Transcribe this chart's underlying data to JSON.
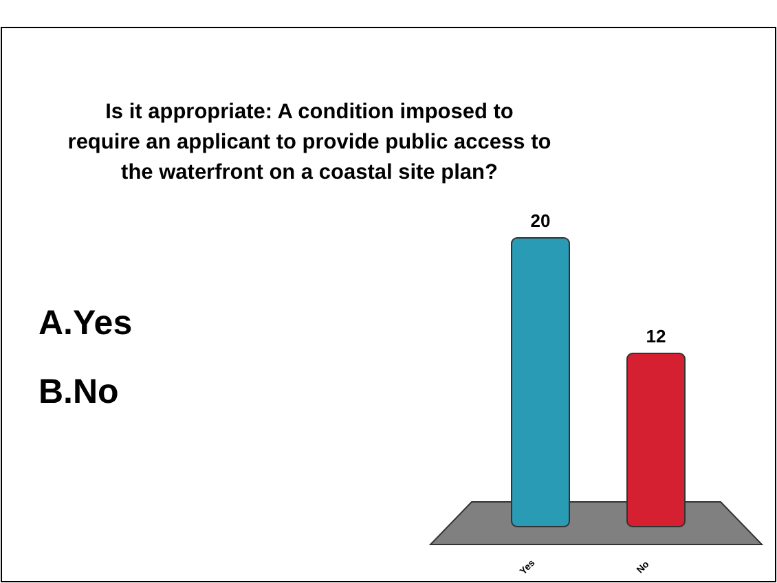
{
  "chart_data": {
    "type": "bar",
    "title": "Is it appropriate: A condition imposed to require an applicant to provide public access to the waterfront on a coastal site plan?",
    "categories": [
      "Yes",
      "No"
    ],
    "values": [
      20,
      12
    ],
    "colors": [
      "#2a9bb5",
      "#d42030"
    ],
    "data_labels": true,
    "annotations": [
      "A.Yes",
      "B.No"
    ]
  }
}
